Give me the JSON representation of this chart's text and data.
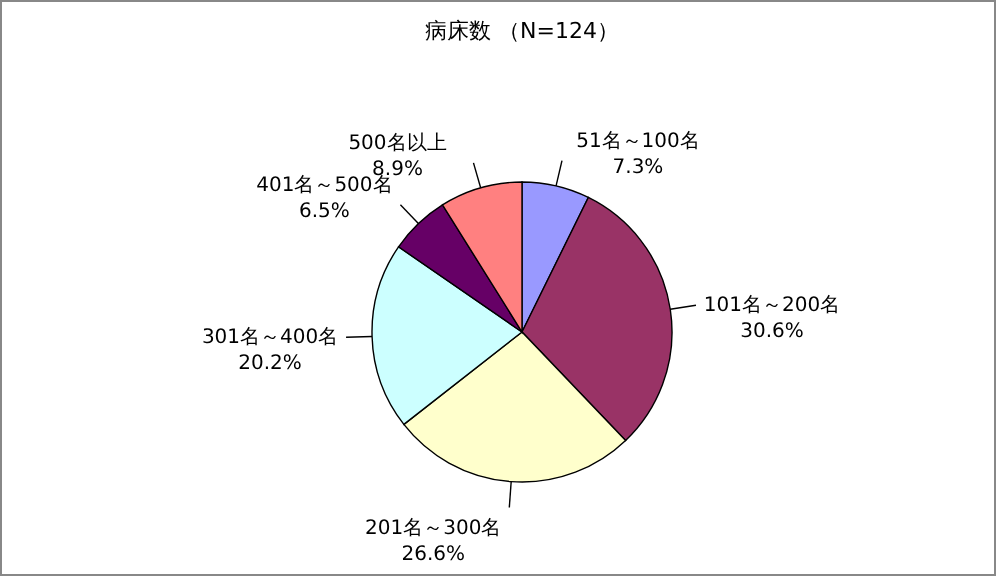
{
  "chart_data": {
    "type": "pie",
    "title": "病床数 （N=124）",
    "categories": [
      "51名～100名",
      "101名～200名",
      "201名～300名",
      "301名～400名",
      "401名～500名",
      "500名以上"
    ],
    "values": [
      7.3,
      30.6,
      26.6,
      20.2,
      6.5,
      8.9
    ],
    "value_labels": [
      "7.3%",
      "30.6%",
      "26.6%",
      "20.2%",
      "6.5%",
      "8.9%"
    ],
    "colors": [
      "#9999ff",
      "#993366",
      "#ffffcc",
      "#ccffff",
      "#660066",
      "#ff8080"
    ],
    "legend": false
  }
}
